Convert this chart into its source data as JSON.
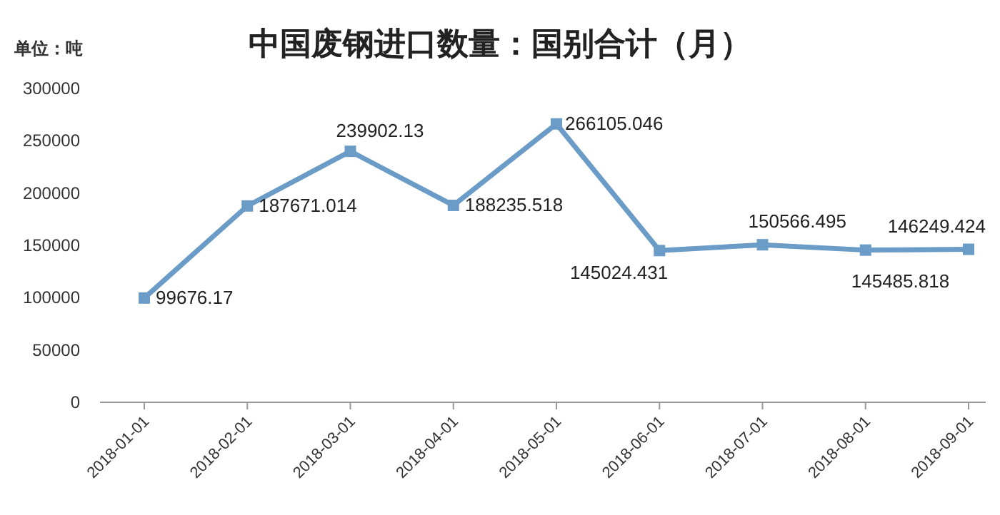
{
  "chart_data": {
    "type": "line",
    "title": "中国废钢进口数量：国别合计（月）",
    "ylabel": "单位：吨",
    "categories": [
      "2018-01-01",
      "2018-02-01",
      "2018-03-01",
      "2018-04-01",
      "2018-05-01",
      "2018-06-01",
      "2018-07-01",
      "2018-08-01",
      "2018-09-01"
    ],
    "values": [
      99676.17,
      187671.014,
      239902.13,
      188235.518,
      266105.046,
      145024.431,
      150566.495,
      145485.818,
      146249.424
    ],
    "color": "#6b9bc7",
    "marker": "square",
    "data_labels": true,
    "ylim": [
      0,
      300000
    ],
    "yticks": [
      0,
      50000,
      100000,
      150000,
      200000,
      250000,
      300000
    ]
  }
}
